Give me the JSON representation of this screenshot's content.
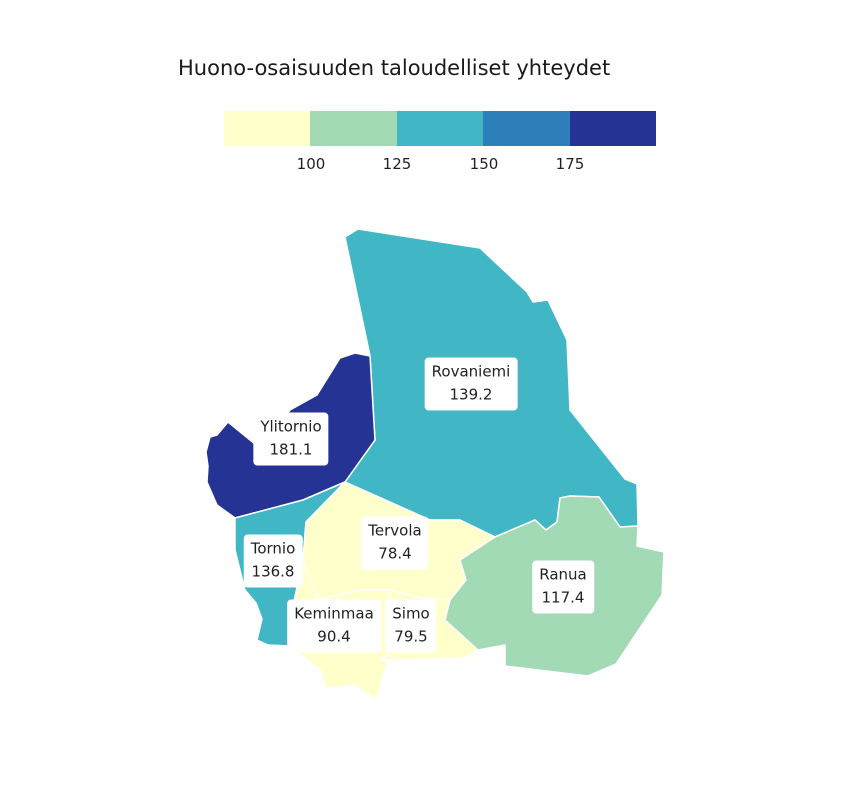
{
  "title": "Huono-osaisuuden taloudelliset yhteydet",
  "legend": {
    "breaks": [
      "100",
      "125",
      "150",
      "175"
    ],
    "colors": [
      "#ffffcc",
      "#a1dab4",
      "#41b6c4",
      "#2c7fb8",
      "#253494"
    ]
  },
  "regions": [
    {
      "name": "Rovaniemi",
      "value": "139.2",
      "color": "#41b6c4"
    },
    {
      "name": "Ylitornio",
      "value": "181.1",
      "color": "#253494"
    },
    {
      "name": "Tornio",
      "value": "136.8",
      "color": "#41b6c4"
    },
    {
      "name": "Tervola",
      "value": "78.4",
      "color": "#ffffcc"
    },
    {
      "name": "Keminmaa",
      "value": "90.4",
      "color": "#ffffcc"
    },
    {
      "name": "Simo",
      "value": "79.5",
      "color": "#ffffcc"
    },
    {
      "name": "Ranua",
      "value": "117.4",
      "color": "#a1dab4"
    }
  ]
}
